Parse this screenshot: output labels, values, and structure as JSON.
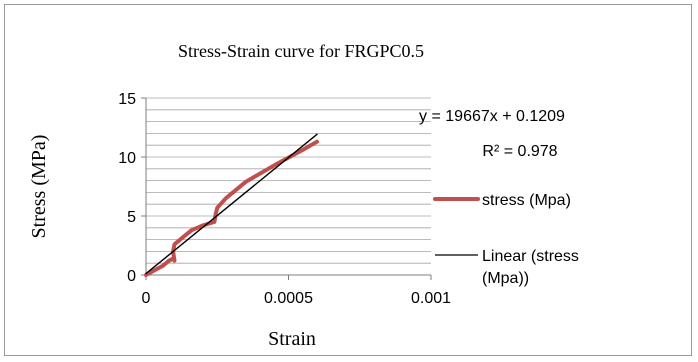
{
  "chart_data": {
    "type": "scatter",
    "title": "Stress-Strain curve for FRGPC0.5",
    "xlabel": "Strain",
    "ylabel": "Stress (MPa)",
    "xlim": [
      0,
      0.001
    ],
    "ylim": [
      0,
      15
    ],
    "x_ticks": [
      "0",
      "0.0005",
      "0.001"
    ],
    "y_ticks": [
      "0",
      "5",
      "10",
      "15"
    ],
    "grid": "horizontal",
    "legend_position": "right",
    "series": [
      {
        "name": "stress (Mpa)",
        "color": "#C0504D",
        "style": "thick-line",
        "x": [
          0,
          3e-05,
          6e-05,
          8e-05,
          9.5e-05,
          0.0001,
          9.5e-05,
          0.0001,
          0.00013,
          0.00016,
          0.0002,
          0.00024,
          0.000245,
          0.00025,
          0.00028,
          0.00035,
          0.00045,
          0.00055,
          0.0006
        ],
        "y": [
          0,
          0.4,
          0.8,
          1.2,
          1.4,
          1.2,
          2.0,
          2.6,
          3.2,
          3.8,
          4.2,
          4.5,
          5.2,
          5.7,
          6.5,
          7.9,
          9.3,
          10.6,
          11.3
        ]
      },
      {
        "name": "Linear (stress (Mpa))",
        "color": "#000000",
        "style": "thin-line",
        "x": [
          0,
          0.0006
        ],
        "y": [
          0.1209,
          11.9211
        ]
      }
    ],
    "annotations": {
      "equation": "y = 19667x + 0.1209",
      "r_squared": "R² = 0.978"
    }
  }
}
